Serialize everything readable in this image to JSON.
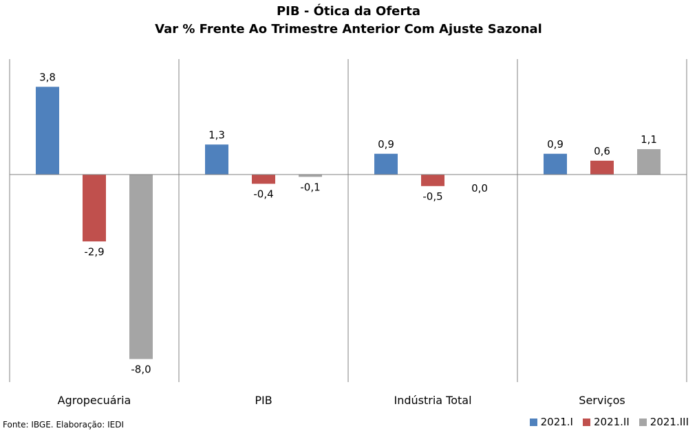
{
  "chart_data": {
    "type": "bar",
    "title": "PIB - Ótica da Oferta",
    "subtitle": "Var % Frente Ao Trimestre Anterior Com Ajuste Sazonal",
    "categories": [
      "Agropecuária",
      "PIB",
      "Indústria Total",
      "Serviços"
    ],
    "series": [
      {
        "name": "2021.I",
        "color": "#4F81BD",
        "values": [
          3.8,
          1.3,
          0.9,
          0.9
        ],
        "labels": [
          "3,8",
          "1,3",
          "0,9",
          "0,9"
        ]
      },
      {
        "name": "2021.II",
        "color": "#C0504D",
        "values": [
          -2.9,
          -0.4,
          -0.5,
          0.6
        ],
        "labels": [
          "-2,9",
          "-0,4",
          "-0,5",
          "0,6"
        ]
      },
      {
        "name": "2021.III",
        "color": "#A5A5A5",
        "values": [
          -8.0,
          -0.1,
          0.0,
          1.1
        ],
        "labels": [
          "-8,0",
          "-0,1",
          "0,0",
          "1,1"
        ]
      }
    ],
    "ylim": [
      -9.0,
      5.0
    ],
    "grid": false,
    "legend": "bottom-right"
  },
  "source": "Fonte: IBGE. Elaboração: IEDI"
}
